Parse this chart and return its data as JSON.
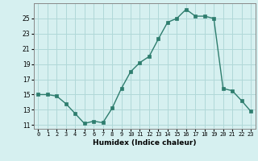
{
  "x": [
    0,
    1,
    2,
    3,
    4,
    5,
    6,
    7,
    8,
    9,
    10,
    11,
    12,
    13,
    14,
    15,
    16,
    17,
    18,
    19,
    20,
    21,
    22,
    23
  ],
  "y": [
    15,
    15,
    14.8,
    13.8,
    12.5,
    11.2,
    11.5,
    11.3,
    13.2,
    15.8,
    18.0,
    19.2,
    20.0,
    22.3,
    24.5,
    25.0,
    26.2,
    25.3,
    25.3,
    25.0,
    15.8,
    15.5,
    14.2,
    12.8
  ],
  "line_color": "#2e7d6e",
  "marker": "s",
  "marker_size": 2.2,
  "bg_color": "#d6f0f0",
  "grid_color": "#b0d8d8",
  "xlabel": "Humidex (Indice chaleur)",
  "ylim": [
    10.5,
    27.0
  ],
  "xlim": [
    -0.5,
    23.5
  ],
  "yticks": [
    11,
    13,
    15,
    17,
    19,
    21,
    23,
    25
  ],
  "xtick_labels": [
    "0",
    "1",
    "2",
    "3",
    "4",
    "5",
    "6",
    "7",
    "8",
    "9",
    "10",
    "11",
    "12",
    "13",
    "14",
    "15",
    "16",
    "17",
    "18",
    "19",
    "20",
    "21",
    "22",
    "23"
  ]
}
